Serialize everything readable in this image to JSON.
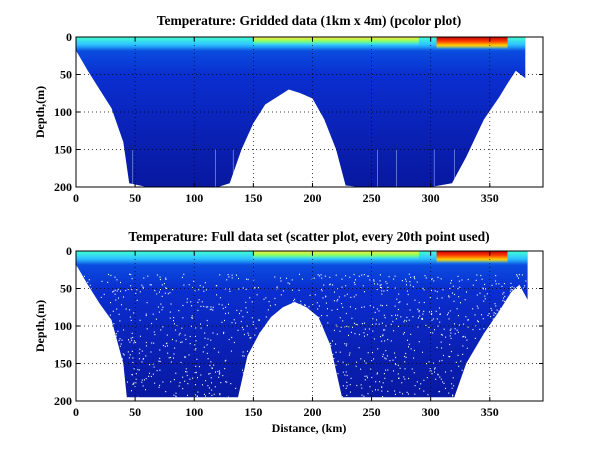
{
  "chart_data": [
    {
      "type": "heatmap",
      "variant": "pcolor",
      "title": "Temperature: Gridded data (1km x 4m) (pcolor plot)",
      "xlabel": "",
      "ylabel": "Depth,(m)",
      "xlim": [
        0,
        395
      ],
      "ylim": [
        200,
        0
      ],
      "x_ticks": [
        0,
        50,
        100,
        150,
        200,
        250,
        300,
        350
      ],
      "y_ticks": [
        0,
        50,
        100,
        150,
        200
      ],
      "grid": true,
      "colormap": "jet",
      "bottom_profile_km_depth": [
        [
          0,
          18
        ],
        [
          10,
          45
        ],
        [
          20,
          70
        ],
        [
          30,
          95
        ],
        [
          40,
          140
        ],
        [
          45,
          195
        ],
        [
          60,
          200
        ],
        [
          120,
          200
        ],
        [
          130,
          195
        ],
        [
          140,
          150
        ],
        [
          150,
          115
        ],
        [
          160,
          90
        ],
        [
          170,
          80
        ],
        [
          180,
          70
        ],
        [
          190,
          75
        ],
        [
          200,
          82
        ],
        [
          210,
          110
        ],
        [
          220,
          150
        ],
        [
          228,
          198
        ],
        [
          240,
          200
        ],
        [
          300,
          200
        ],
        [
          318,
          195
        ],
        [
          330,
          160
        ],
        [
          345,
          110
        ],
        [
          358,
          80
        ],
        [
          365,
          62
        ],
        [
          372,
          45
        ],
        [
          380,
          55
        ]
      ],
      "surface_warm_patches": [
        {
          "from_km": 305,
          "to_km": 365,
          "intensity": "red"
        },
        {
          "from_km": 150,
          "to_km": 290,
          "intensity": "yellow"
        }
      ]
    },
    {
      "type": "scatter",
      "variant": "scatter",
      "title": "Temperature: Full data set (scatter plot, every 20th point used)",
      "xlabel": "Distance, (km)",
      "ylabel": "Depth,(m)",
      "xlim": [
        0,
        395
      ],
      "ylim": [
        200,
        0
      ],
      "x_ticks": [
        0,
        50,
        100,
        150,
        200,
        250,
        300,
        350
      ],
      "y_ticks": [
        0,
        50,
        100,
        150,
        200
      ],
      "grid": true,
      "colormap": "jet",
      "bottom_profile_km_depth": [
        [
          0,
          18
        ],
        [
          10,
          45
        ],
        [
          20,
          70
        ],
        [
          30,
          92
        ],
        [
          40,
          150
        ],
        [
          43,
          195
        ],
        [
          60,
          195
        ],
        [
          120,
          195
        ],
        [
          137,
          195
        ],
        [
          145,
          140
        ],
        [
          155,
          110
        ],
        [
          165,
          88
        ],
        [
          175,
          75
        ],
        [
          185,
          68
        ],
        [
          195,
          75
        ],
        [
          205,
          88
        ],
        [
          215,
          125
        ],
        [
          225,
          195
        ],
        [
          240,
          195
        ],
        [
          300,
          195
        ],
        [
          320,
          195
        ],
        [
          330,
          150
        ],
        [
          345,
          110
        ],
        [
          358,
          80
        ],
        [
          368,
          55
        ],
        [
          375,
          45
        ],
        [
          382,
          65
        ]
      ],
      "surface_warm_patches": [
        {
          "from_km": 305,
          "to_km": 365,
          "intensity": "red"
        },
        {
          "from_km": 150,
          "to_km": 290,
          "intensity": "yellow"
        }
      ]
    }
  ]
}
